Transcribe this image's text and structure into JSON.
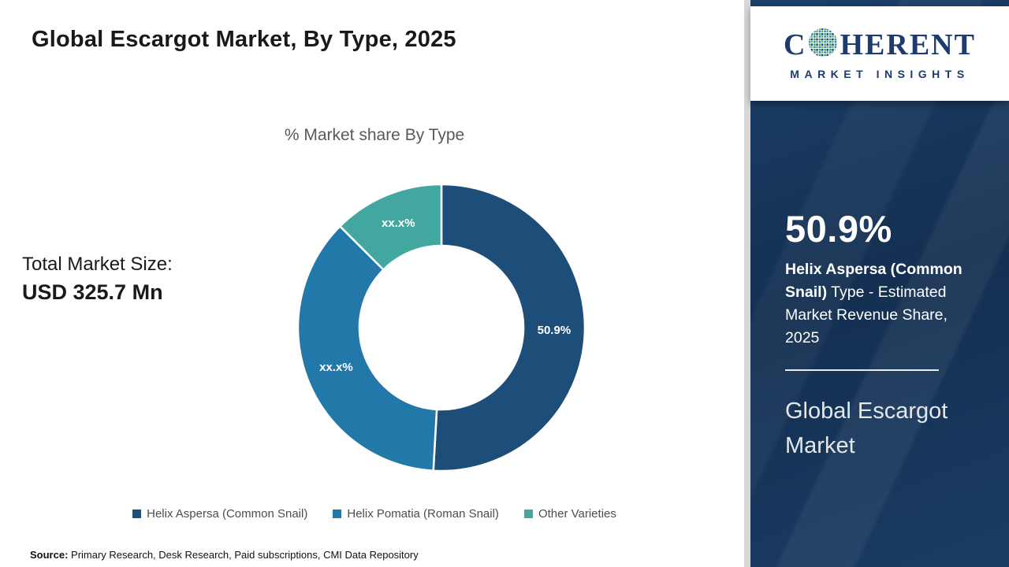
{
  "header": {
    "title": "Global Escargot Market, By Type, 2025"
  },
  "logo": {
    "brand_prefix": "C",
    "brand_suffix": "HERENT",
    "tagline": "MARKET INSIGHTS",
    "brand_color": "#1e3a6e"
  },
  "chart_data": {
    "type": "donut",
    "title": "% Market share By Type",
    "categories": [
      "Helix Aspersa (Common Snail)",
      "Helix Pomatia (Roman Snail)",
      "Other Varieties"
    ],
    "values": [
      50.9,
      36.6,
      12.5
    ],
    "slice_labels": [
      "50.9%",
      "xx.x%",
      "xx.x%"
    ],
    "colors": [
      "#1d4e79",
      "#2278a9",
      "#42a79e"
    ],
    "inner_radius_ratio": 0.57,
    "legend_position": "bottom",
    "note": "Only the 50.9% share is shown; other slice values are masked as xx.x% in the source image"
  },
  "left_panel": {
    "total_label": "Total Market Size:",
    "total_value": "USD 325.7 Mn"
  },
  "side_panel": {
    "share_value": "50.9%",
    "share_bold": "Helix Aspersa (Common Snail)",
    "share_rest": " Type - Estimated Market Revenue Share, 2025",
    "market_name": "Global Escargot Market",
    "bg_color": "#163a63"
  },
  "footer": {
    "source_label": "Source:",
    "source_text": " Primary Research, Desk Research, Paid subscriptions, CMI Data Repository"
  }
}
